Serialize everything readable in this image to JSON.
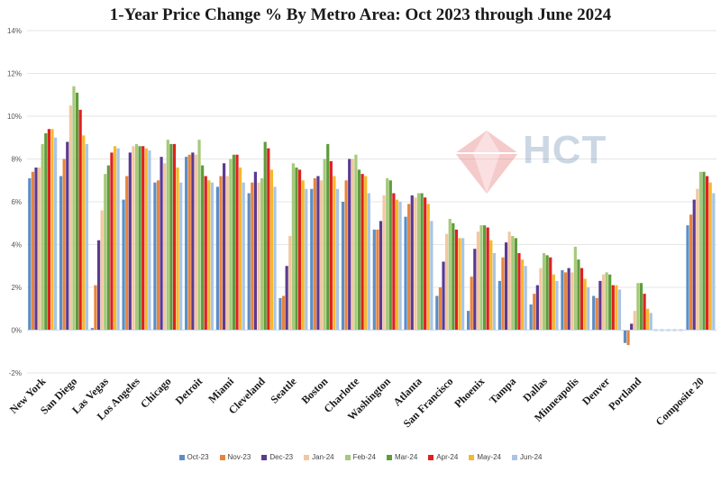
{
  "chart_data": {
    "type": "bar",
    "title": "1-Year Price Change % By Metro Area: Oct 2023 through June 2024",
    "xlabel": "",
    "ylabel": "",
    "ylim": [
      -2,
      14
    ],
    "yticks": [
      "-2%",
      "0%",
      "2%",
      "4%",
      "6%",
      "8%",
      "10%",
      "12%",
      "14%"
    ],
    "grid": "horizontal",
    "legend_position": "bottom",
    "categories": [
      "New York",
      "San Diego",
      "Las Vegas",
      "Los Angeles",
      "Chicago",
      "Detroit",
      "Miami",
      "Cleveland",
      "Seattle",
      "Boston",
      "Charlotte",
      "Washington",
      "Atlanta",
      "San Francisco",
      "Phoenix",
      "Tampa",
      "Dallas",
      "Minneapolis",
      "Denver",
      "Portland",
      "",
      "Composite 20"
    ],
    "series": [
      {
        "name": "Oct-23",
        "color": "#5b8ec6",
        "values": [
          7.1,
          7.2,
          0.1,
          6.1,
          6.9,
          8.1,
          6.7,
          6.4,
          1.5,
          6.6,
          6.0,
          4.7,
          5.3,
          1.6,
          0.9,
          2.3,
          1.2,
          2.8,
          1.6,
          -0.6,
          null,
          4.9
        ]
      },
      {
        "name": "Nov-23",
        "color": "#e8843d",
        "values": [
          7.4,
          8.0,
          2.1,
          7.2,
          7.0,
          8.2,
          7.2,
          6.9,
          1.6,
          7.1,
          7.0,
          4.7,
          5.9,
          2.0,
          2.5,
          3.4,
          1.7,
          2.7,
          1.5,
          -0.7,
          null,
          5.4
        ]
      },
      {
        "name": "Dec-23",
        "color": "#5b3a91",
        "values": [
          7.6,
          8.8,
          4.2,
          8.3,
          8.1,
          8.3,
          7.8,
          7.4,
          3.0,
          7.2,
          8.0,
          5.1,
          6.3,
          3.2,
          3.8,
          4.1,
          2.1,
          2.9,
          2.3,
          0.3,
          null,
          6.1
        ]
      },
      {
        "name": "Jan-24",
        "color": "#f2c7a0",
        "values": [
          7.6,
          10.5,
          5.6,
          8.6,
          7.8,
          8.2,
          7.2,
          6.9,
          4.4,
          7.0,
          8.0,
          6.3,
          6.2,
          4.5,
          4.6,
          4.6,
          2.9,
          2.7,
          2.6,
          0.9,
          null,
          6.6
        ]
      },
      {
        "name": "Feb-24",
        "color": "#a6c97a",
        "values": [
          8.7,
          11.4,
          7.3,
          8.7,
          8.9,
          8.9,
          8.0,
          7.1,
          7.8,
          8.0,
          8.2,
          7.1,
          6.4,
          5.2,
          4.9,
          4.4,
          3.6,
          3.9,
          2.7,
          2.2,
          null,
          7.4
        ]
      },
      {
        "name": "Mar-24",
        "color": "#5e9c3c",
        "values": [
          9.2,
          11.1,
          7.7,
          8.6,
          8.7,
          7.7,
          8.2,
          8.8,
          7.6,
          8.7,
          7.5,
          7.0,
          6.4,
          5.0,
          4.9,
          4.3,
          3.5,
          3.3,
          2.6,
          2.2,
          null,
          7.4
        ]
      },
      {
        "name": "Apr-24",
        "color": "#e02020",
        "values": [
          9.4,
          10.3,
          8.3,
          8.6,
          8.7,
          7.2,
          8.2,
          8.5,
          7.5,
          7.9,
          7.3,
          6.4,
          6.2,
          4.7,
          4.8,
          3.6,
          3.4,
          2.9,
          2.1,
          1.7,
          null,
          7.2
        ]
      },
      {
        "name": "May-24",
        "color": "#f5b92b",
        "values": [
          9.4,
          9.1,
          8.6,
          8.5,
          7.6,
          7.0,
          7.6,
          7.5,
          7.0,
          7.2,
          7.2,
          6.1,
          5.9,
          4.3,
          4.2,
          3.3,
          2.6,
          2.4,
          2.1,
          1.0,
          null,
          6.9
        ]
      },
      {
        "name": "Jun-24",
        "color": "#a9c4e6",
        "values": [
          9.0,
          8.7,
          8.5,
          8.4,
          6.9,
          6.9,
          6.9,
          6.7,
          6.6,
          6.6,
          6.4,
          6.0,
          5.1,
          4.3,
          3.6,
          3.0,
          2.3,
          2.0,
          1.9,
          0.8,
          null,
          6.4
        ]
      }
    ],
    "composite_gap_style": {
      "color": "#a9c4e6",
      "dashed": true
    }
  },
  "watermark": {
    "brand": "HCT",
    "colors": {
      "logo_red": "#e56a6a",
      "logo_blue": "#6f8fb5"
    }
  }
}
